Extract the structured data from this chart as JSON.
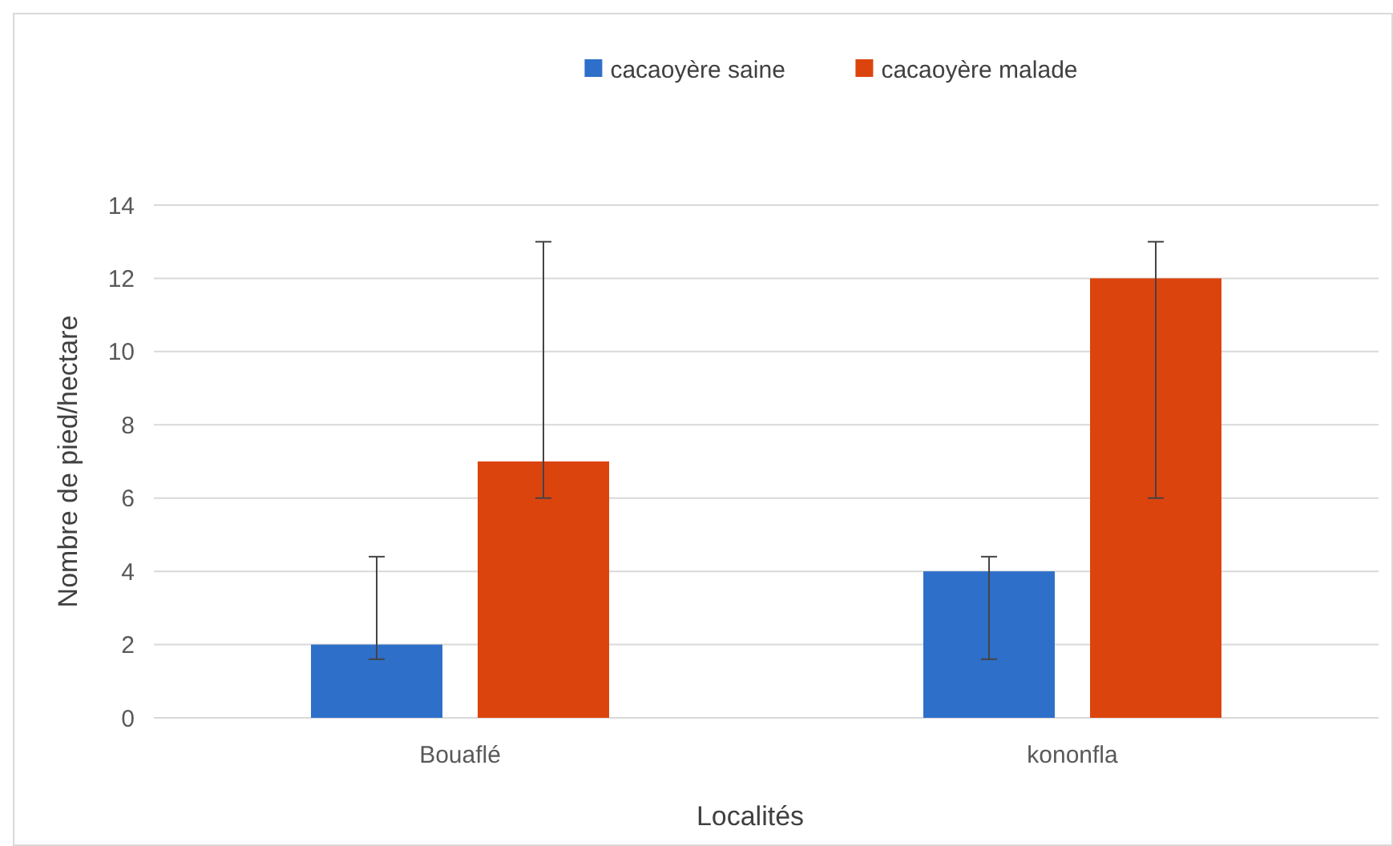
{
  "chart_data": {
    "type": "bar",
    "xlabel": "Localités",
    "ylabel": "Nombre de pied/hectare",
    "categories": [
      "Bouaflé",
      "kononfla"
    ],
    "series": [
      {
        "name": "cacaoyère saine",
        "color": "#2e6fca",
        "values": [
          2,
          4
        ],
        "errors": [
          [
            1.6,
            4.4
          ],
          [
            1.6,
            4.4
          ]
        ]
      },
      {
        "name": "cacaoyère malade",
        "color": "#dc440e",
        "values": [
          7,
          12
        ],
        "errors": [
          [
            6,
            13
          ],
          [
            6,
            13
          ]
        ]
      }
    ],
    "ylim": [
      0,
      14
    ],
    "yticks": [
      0,
      2,
      4,
      6,
      8,
      10,
      12,
      14
    ],
    "grid": "y",
    "legend": "top"
  }
}
